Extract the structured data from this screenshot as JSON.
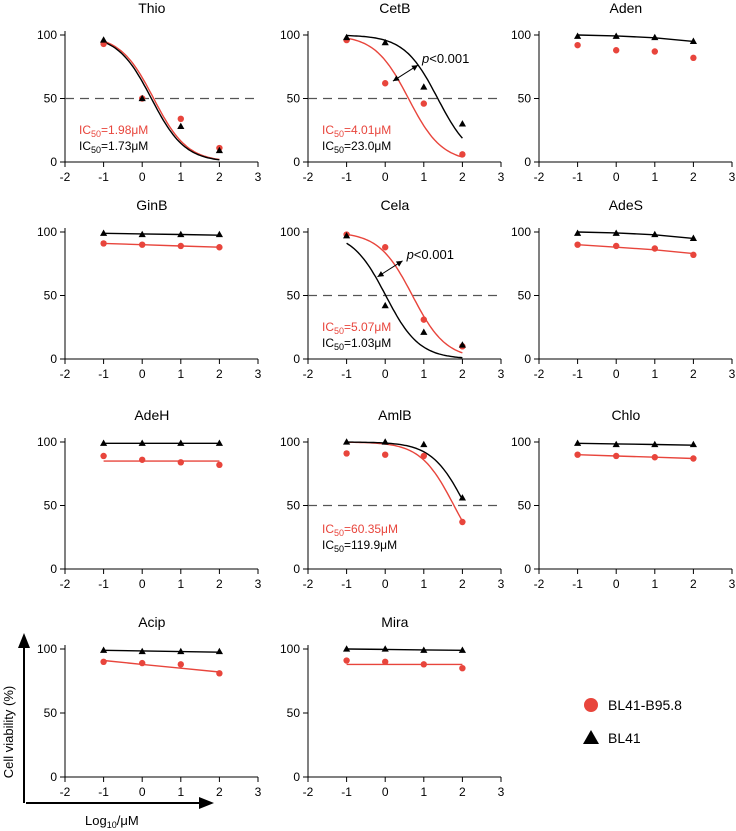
{
  "colors": {
    "bl41_b958": "#e8453c",
    "bl41": "#000000",
    "reference_line": "#555555"
  },
  "legend": [
    {
      "label": "BL41-B95.8",
      "marker": "circle",
      "color": "#e8453c"
    },
    {
      "label": "BL41",
      "marker": "triangle",
      "color": "#000000"
    }
  ],
  "ylabel": "Cell  viability (%)",
  "xlabel": {
    "prefix": "Log",
    "sub": "10",
    "suffix": "/μM"
  },
  "x_ticks": [
    "-2",
    "-1",
    "0",
    "1",
    "2",
    "3"
  ],
  "y_ticks": [
    "0",
    "50",
    "100"
  ],
  "chart_data": [
    {
      "name": "Thio",
      "type": "scatter",
      "x": [
        -1,
        0,
        1,
        2
      ],
      "xlim": [
        -2,
        3
      ],
      "ylim": [
        0,
        100
      ],
      "reference_line": 50,
      "series": [
        {
          "name": "BL41-B95.8",
          "values": [
            93,
            50,
            34,
            11
          ],
          "fit": {
            "kind": "sigmoid",
            "top": 100,
            "ic50_log": 0.297
          }
        },
        {
          "name": "BL41",
          "values": [
            96,
            50,
            28,
            9
          ],
          "fit": {
            "kind": "sigmoid",
            "top": 100,
            "ic50_log": 0.238
          }
        }
      ],
      "ic50_labels": [
        {
          "series": "BL41-B95.8",
          "value": "1.98μM"
        },
        {
          "series": "BL41",
          "value": "1.73μM"
        }
      ]
    },
    {
      "name": "CetB",
      "type": "scatter",
      "x": [
        -1,
        0,
        1,
        2
      ],
      "xlim": [
        -2,
        3
      ],
      "ylim": [
        0,
        100
      ],
      "reference_line": 50,
      "series": [
        {
          "name": "BL41-B95.8",
          "values": [
            96,
            62,
            46,
            6
          ],
          "fit": {
            "kind": "sigmoid",
            "top": 100,
            "ic50_log": 0.603
          }
        },
        {
          "name": "BL41",
          "values": [
            98,
            94,
            59,
            30
          ],
          "fit": {
            "kind": "sigmoid",
            "top": 100,
            "ic50_log": 1.362
          }
        }
      ],
      "ic50_labels": [
        {
          "series": "BL41-B95.8",
          "value": "4.01μM"
        },
        {
          "series": "BL41",
          "value": "23.0μM"
        }
      ],
      "annotation": {
        "text": "p<0.001",
        "x_from": 0.2,
        "x_to": 0.85,
        "y": 70
      }
    },
    {
      "name": "Aden",
      "type": "scatter",
      "x": [
        -1,
        0,
        1,
        2
      ],
      "xlim": [
        -2,
        3
      ],
      "ylim": [
        0,
        100
      ],
      "reference_line": null,
      "series": [
        {
          "name": "BL41-B95.8",
          "values": [
            92,
            88,
            87,
            82
          ],
          "fit": null
        },
        {
          "name": "BL41",
          "values": [
            99,
            99,
            98,
            95
          ],
          "fit": {
            "kind": "line",
            "y": [
              100,
              99.3,
              97.8,
              95
            ]
          }
        }
      ],
      "ic50_labels": []
    },
    {
      "name": "GinB",
      "type": "scatter",
      "x": [
        -1,
        0,
        1,
        2
      ],
      "xlim": [
        -2,
        3
      ],
      "ylim": [
        0,
        100
      ],
      "reference_line": null,
      "series": [
        {
          "name": "BL41-B95.8",
          "values": [
            91,
            90,
            89,
            88
          ],
          "fit": {
            "kind": "line",
            "y": [
              91,
              90,
              89,
              88
            ]
          }
        },
        {
          "name": "BL41",
          "values": [
            99,
            98,
            98,
            98
          ],
          "fit": {
            "kind": "line",
            "y": [
              99,
              98.5,
              98,
              97.5
            ]
          }
        }
      ],
      "ic50_labels": []
    },
    {
      "name": "Cela",
      "type": "scatter",
      "x": [
        -1,
        0,
        1,
        2
      ],
      "xlim": [
        -2,
        3
      ],
      "ylim": [
        0,
        100
      ],
      "reference_line": 50,
      "series": [
        {
          "name": "BL41-B95.8",
          "values": [
            98,
            88,
            31,
            10
          ],
          "fit": {
            "kind": "sigmoid",
            "top": 100,
            "ic50_log": 0.705
          }
        },
        {
          "name": "BL41",
          "values": [
            97,
            42,
            21,
            11
          ],
          "fit": {
            "kind": "sigmoid",
            "top": 100,
            "ic50_log": 0.013
          }
        }
      ],
      "ic50_labels": [
        {
          "series": "BL41-B95.8",
          "value": "5.07μM"
        },
        {
          "series": "BL41",
          "value": "1.03μM"
        }
      ],
      "annotation": {
        "text": "p<0.001",
        "x_from": -0.2,
        "x_to": 0.45,
        "y": 71
      }
    },
    {
      "name": "AdeS",
      "type": "scatter",
      "x": [
        -1,
        0,
        1,
        2
      ],
      "xlim": [
        -2,
        3
      ],
      "ylim": [
        0,
        100
      ],
      "reference_line": null,
      "series": [
        {
          "name": "BL41-B95.8",
          "values": [
            90,
            89,
            87,
            82
          ],
          "fit": {
            "kind": "line",
            "y": [
              90,
              88,
              86,
              83
            ]
          }
        },
        {
          "name": "BL41",
          "values": [
            99,
            99,
            98,
            95
          ],
          "fit": {
            "kind": "line",
            "y": [
              100,
              99.3,
              97.8,
              95
            ]
          }
        }
      ],
      "ic50_labels": []
    },
    {
      "name": "AdeH",
      "type": "scatter",
      "x": [
        -1,
        0,
        1,
        2
      ],
      "xlim": [
        -2,
        3
      ],
      "ylim": [
        0,
        100
      ],
      "reference_line": null,
      "series": [
        {
          "name": "BL41-B95.8",
          "values": [
            89,
            86,
            84,
            82
          ],
          "fit": {
            "kind": "line",
            "y": [
              85,
              85,
              85,
              85
            ]
          }
        },
        {
          "name": "BL41",
          "values": [
            99,
            99,
            99,
            99
          ],
          "fit": {
            "kind": "line",
            "y": [
              99,
              99,
              99,
              99
            ]
          }
        }
      ],
      "ic50_labels": []
    },
    {
      "name": "AmlB",
      "type": "scatter",
      "x": [
        -1,
        0,
        1,
        2
      ],
      "xlim": [
        -2,
        3
      ],
      "ylim": [
        0,
        100
      ],
      "reference_line": 50,
      "series": [
        {
          "name": "BL41-B95.8",
          "values": [
            91,
            90,
            89,
            37
          ],
          "fit": {
            "kind": "sigmoid",
            "top": 100,
            "ic50_log": 1.781
          }
        },
        {
          "name": "BL41",
          "values": [
            100,
            100,
            98,
            56
          ],
          "fit": {
            "kind": "sigmoid",
            "top": 100,
            "ic50_log": 2.079
          }
        }
      ],
      "ic50_labels": [
        {
          "series": "BL41-B95.8",
          "value": "60.35μM"
        },
        {
          "series": "BL41",
          "value": "119.9μM"
        }
      ]
    },
    {
      "name": "Chlo",
      "type": "scatter",
      "x": [
        -1,
        0,
        1,
        2
      ],
      "xlim": [
        -2,
        3
      ],
      "ylim": [
        0,
        100
      ],
      "reference_line": null,
      "series": [
        {
          "name": "BL41-B95.8",
          "values": [
            90,
            89,
            88,
            87
          ],
          "fit": {
            "kind": "line",
            "y": [
              90,
              89,
              88,
              87
            ]
          }
        },
        {
          "name": "BL41",
          "values": [
            99,
            98,
            98,
            98
          ],
          "fit": {
            "kind": "line",
            "y": [
              99,
              98.5,
              98,
              97.5
            ]
          }
        }
      ],
      "ic50_labels": []
    },
    {
      "name": "Acip",
      "type": "scatter",
      "x": [
        -1,
        0,
        1,
        2
      ],
      "xlim": [
        -2,
        3
      ],
      "ylim": [
        0,
        100
      ],
      "reference_line": null,
      "series": [
        {
          "name": "BL41-B95.8",
          "values": [
            90,
            89,
            88,
            81
          ],
          "fit": {
            "kind": "line",
            "y": [
              91,
              88,
              85,
              82
            ]
          }
        },
        {
          "name": "BL41",
          "values": [
            99,
            98,
            98,
            98
          ],
          "fit": {
            "kind": "line",
            "y": [
              99,
              98.5,
              98,
              97.5
            ]
          }
        }
      ],
      "ic50_labels": []
    },
    {
      "name": "Mira",
      "type": "scatter",
      "x": [
        -1,
        0,
        1,
        2
      ],
      "xlim": [
        -2,
        3
      ],
      "ylim": [
        0,
        100
      ],
      "reference_line": null,
      "series": [
        {
          "name": "BL41-B95.8",
          "values": [
            91,
            90,
            88,
            85
          ],
          "fit": {
            "kind": "line",
            "y": [
              88,
              88,
              88,
              88
            ]
          }
        },
        {
          "name": "BL41",
          "values": [
            100,
            100,
            99,
            99
          ],
          "fit": {
            "kind": "line",
            "y": [
              100,
              99.7,
              99.3,
              99
            ]
          }
        }
      ],
      "ic50_labels": []
    }
  ]
}
